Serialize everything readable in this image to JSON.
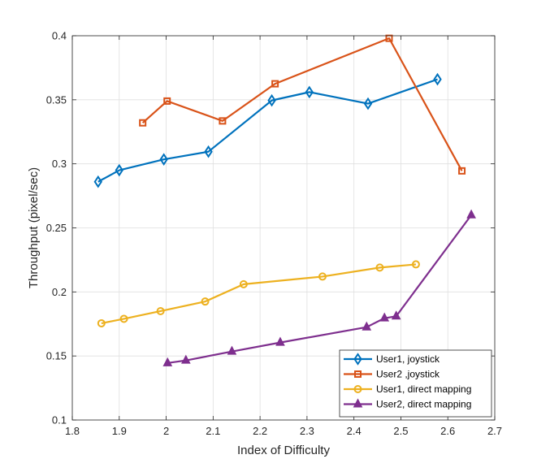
{
  "chart_data": {
    "type": "line",
    "title": "",
    "xlabel": "Index of Difficulty",
    "ylabel": "Throughput (pixel/sec)",
    "xlim": [
      1.8,
      2.7
    ],
    "ylim": [
      0.1,
      0.4
    ],
    "xticks": [
      "1.8",
      "1.9",
      "2",
      "2.1",
      "2.2",
      "2.3",
      "2.4",
      "2.5",
      "2.6",
      "2.7"
    ],
    "yticks": [
      "0.1",
      "0.15",
      "0.2",
      "0.25",
      "0.3",
      "0.35",
      "0.4"
    ],
    "grid": true,
    "legend_position": "bottom-right",
    "series": [
      {
        "name": "User1, joystick",
        "color": "#0072BD",
        "marker": "diamond",
        "x": [
          1.855,
          1.9,
          1.995,
          2.09,
          2.225,
          2.305,
          2.43,
          2.578
        ],
        "y": [
          0.286,
          0.295,
          0.3035,
          0.3095,
          0.3495,
          0.356,
          0.347,
          0.366
        ]
      },
      {
        "name": "User2 ,joystick",
        "color": "#D95319",
        "marker": "square",
        "x": [
          1.95,
          2.002,
          2.12,
          2.232,
          2.475,
          2.63
        ],
        "y": [
          0.332,
          0.349,
          0.3335,
          0.3625,
          0.398,
          0.2945
        ]
      },
      {
        "name": "User1, direct mapping",
        "color": "#EDB120",
        "marker": "circle",
        "x": [
          1.862,
          1.91,
          1.988,
          2.083,
          2.165,
          2.333,
          2.455,
          2.532
        ],
        "y": [
          0.1755,
          0.179,
          0.185,
          0.1925,
          0.206,
          0.212,
          0.219,
          0.2215
        ]
      },
      {
        "name": "User2, direct mapping",
        "color": "#7E2F8E",
        "marker": "triangle",
        "x": [
          2.003,
          2.042,
          2.14,
          2.243,
          2.427,
          2.465,
          2.49,
          2.65
        ],
        "y": [
          0.1445,
          0.1465,
          0.1535,
          0.1605,
          0.1725,
          0.1795,
          0.181,
          0.26
        ]
      }
    ]
  }
}
